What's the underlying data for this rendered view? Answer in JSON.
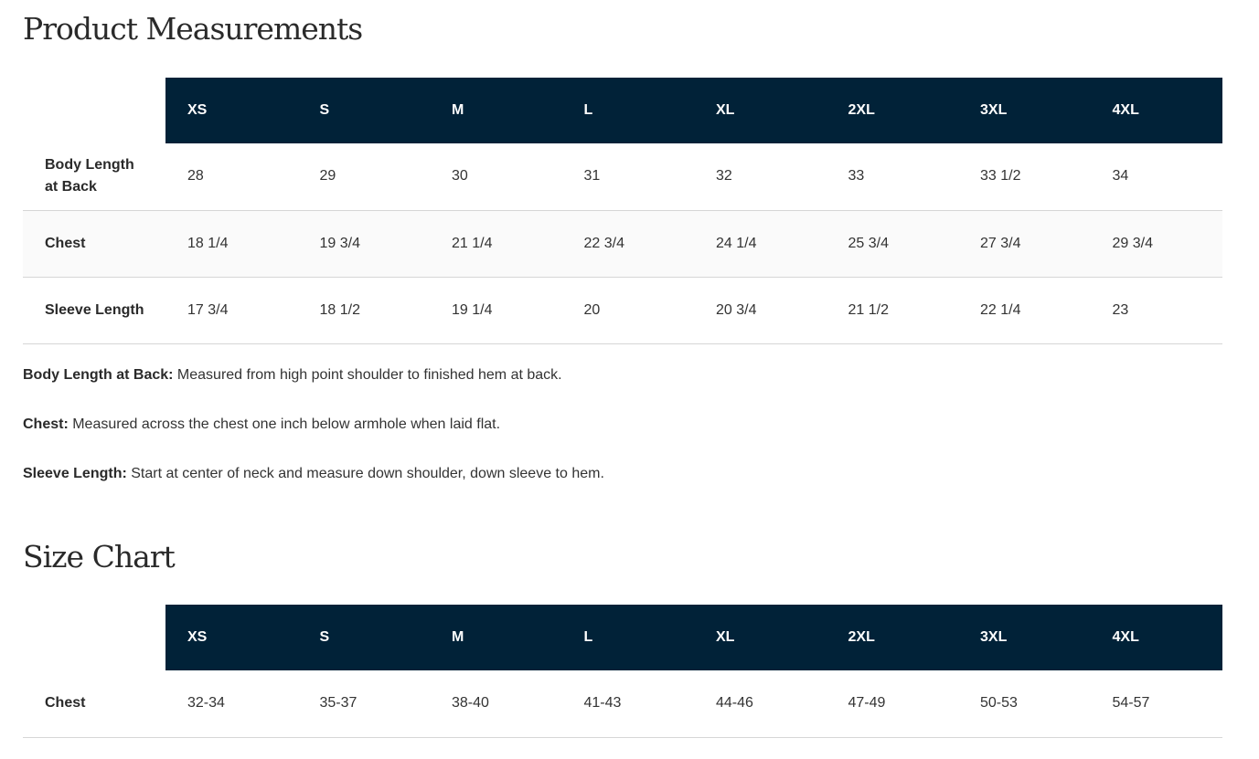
{
  "measurements": {
    "title": "Product Measurements",
    "sizes": [
      "XS",
      "S",
      "M",
      "L",
      "XL",
      "2XL",
      "3XL",
      "4XL"
    ],
    "rows": [
      {
        "label": "Body Length at Back",
        "values": [
          "28",
          "29",
          "30",
          "31",
          "32",
          "33",
          "33 1/2",
          "34"
        ]
      },
      {
        "label": "Chest",
        "values": [
          "18 1/4",
          "19 3/4",
          "21 1/4",
          "22 3/4",
          "24 1/4",
          "25 3/4",
          "27 3/4",
          "29 3/4"
        ]
      },
      {
        "label": "Sleeve Length",
        "values": [
          "17 3/4",
          "18 1/2",
          "19 1/4",
          "20",
          "20 3/4",
          "21 1/2",
          "22 1/4",
          "23"
        ]
      }
    ],
    "notes": [
      {
        "term": "Body Length at Back:",
        "text": " Measured from high point shoulder to finished hem at back."
      },
      {
        "term": "Chest:",
        "text": " Measured across the chest one inch below armhole when laid flat."
      },
      {
        "term": "Sleeve Length:",
        "text": " Start at center of neck and measure down shoulder, down sleeve to hem."
      }
    ]
  },
  "size_chart": {
    "title": "Size Chart",
    "sizes": [
      "XS",
      "S",
      "M",
      "L",
      "XL",
      "2XL",
      "3XL",
      "4XL"
    ],
    "rows": [
      {
        "label": "Chest",
        "values": [
          "32-34",
          "35-37",
          "38-40",
          "41-43",
          "44-46",
          "47-49",
          "50-53",
          "54-57"
        ]
      }
    ]
  },
  "colors": {
    "header_bg": "#012238",
    "alt_row": "#fafafa"
  }
}
